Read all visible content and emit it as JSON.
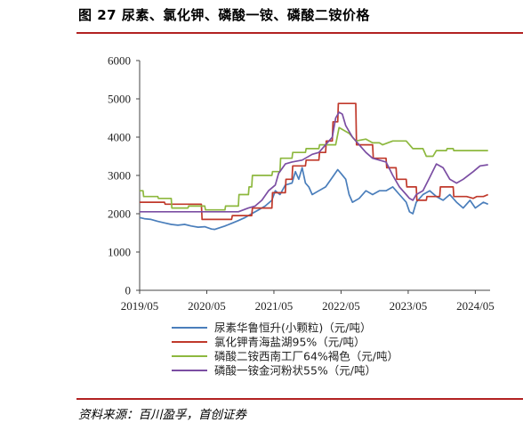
{
  "figure": {
    "title": "图 27 尿素、氯化钾、磷酸一铵、磷酸二铵价格",
    "source": "资料来源：百川盈孚，首创证券"
  },
  "chart_data": {
    "type": "line",
    "ylim": [
      0,
      6000
    ],
    "yticks": [
      0,
      1000,
      2000,
      3000,
      4000,
      5000,
      6000
    ],
    "xlim": [
      2019.33,
      2024.55
    ],
    "xticks": [
      {
        "value": 2019.33,
        "label": "2019/05"
      },
      {
        "value": 2020.33,
        "label": "2020/05"
      },
      {
        "value": 2021.33,
        "label": "2021/05"
      },
      {
        "value": 2022.33,
        "label": "2022/05"
      },
      {
        "value": 2023.33,
        "label": "2023/05"
      },
      {
        "value": 2024.33,
        "label": "2024/05"
      }
    ],
    "grid": false,
    "legend_position": "bottom",
    "series": [
      {
        "name": "尿素华鲁恒升(小颗粒)（元/吨）",
        "color": "#4a7ebb",
        "points": [
          [
            2019.33,
            1900
          ],
          [
            2019.4,
            1870
          ],
          [
            2019.5,
            1850
          ],
          [
            2019.6,
            1800
          ],
          [
            2019.7,
            1760
          ],
          [
            2019.8,
            1720
          ],
          [
            2019.9,
            1700
          ],
          [
            2020.0,
            1720
          ],
          [
            2020.1,
            1680
          ],
          [
            2020.2,
            1650
          ],
          [
            2020.3,
            1660
          ],
          [
            2020.4,
            1600
          ],
          [
            2020.45,
            1590
          ],
          [
            2020.5,
            1620
          ],
          [
            2020.6,
            1680
          ],
          [
            2020.7,
            1750
          ],
          [
            2020.8,
            1820
          ],
          [
            2020.9,
            1900
          ],
          [
            2021.0,
            2000
          ],
          [
            2021.1,
            2100
          ],
          [
            2021.2,
            2200
          ],
          [
            2021.3,
            2350
          ],
          [
            2021.35,
            2600
          ],
          [
            2021.42,
            2500
          ],
          [
            2021.5,
            2750
          ],
          [
            2021.6,
            2800
          ],
          [
            2021.65,
            3100
          ],
          [
            2021.7,
            2900
          ],
          [
            2021.75,
            3200
          ],
          [
            2021.8,
            2800
          ],
          [
            2021.85,
            2700
          ],
          [
            2021.9,
            2500
          ],
          [
            2022.0,
            2600
          ],
          [
            2022.1,
            2700
          ],
          [
            2022.2,
            2950
          ],
          [
            2022.28,
            3150
          ],
          [
            2022.33,
            3050
          ],
          [
            2022.4,
            2900
          ],
          [
            2022.45,
            2500
          ],
          [
            2022.5,
            2300
          ],
          [
            2022.6,
            2400
          ],
          [
            2022.7,
            2600
          ],
          [
            2022.8,
            2500
          ],
          [
            2022.9,
            2600
          ],
          [
            2023.0,
            2600
          ],
          [
            2023.1,
            2700
          ],
          [
            2023.2,
            2500
          ],
          [
            2023.3,
            2300
          ],
          [
            2023.35,
            2050
          ],
          [
            2023.4,
            2000
          ],
          [
            2023.45,
            2300
          ],
          [
            2023.55,
            2500
          ],
          [
            2023.65,
            2600
          ],
          [
            2023.75,
            2450
          ],
          [
            2023.85,
            2350
          ],
          [
            2023.95,
            2500
          ],
          [
            2024.05,
            2300
          ],
          [
            2024.15,
            2150
          ],
          [
            2024.25,
            2350
          ],
          [
            2024.33,
            2150
          ],
          [
            2024.45,
            2300
          ],
          [
            2024.52,
            2250
          ]
        ]
      },
      {
        "name": "氯化钾青海盐湖95%（元/吨）",
        "color": "#c0392b",
        "points": [
          [
            2019.33,
            2300
          ],
          [
            2019.7,
            2300
          ],
          [
            2019.71,
            2250
          ],
          [
            2020.25,
            2250
          ],
          [
            2020.26,
            1850
          ],
          [
            2020.7,
            1850
          ],
          [
            2020.71,
            1950
          ],
          [
            2021.0,
            1950
          ],
          [
            2021.01,
            2150
          ],
          [
            2021.3,
            2150
          ],
          [
            2021.31,
            2550
          ],
          [
            2021.5,
            2550
          ],
          [
            2021.51,
            2900
          ],
          [
            2021.6,
            2900
          ],
          [
            2021.61,
            3250
          ],
          [
            2021.8,
            3250
          ],
          [
            2021.81,
            3400
          ],
          [
            2022.0,
            3400
          ],
          [
            2022.01,
            3600
          ],
          [
            2022.1,
            3600
          ],
          [
            2022.11,
            3900
          ],
          [
            2022.2,
            3900
          ],
          [
            2022.21,
            4400
          ],
          [
            2022.28,
            4400
          ],
          [
            2022.29,
            4880
          ],
          [
            2022.55,
            4880
          ],
          [
            2022.56,
            3800
          ],
          [
            2022.8,
            3800
          ],
          [
            2022.81,
            3450
          ],
          [
            2023.0,
            3450
          ],
          [
            2023.01,
            3200
          ],
          [
            2023.15,
            3200
          ],
          [
            2023.16,
            2900
          ],
          [
            2023.3,
            2900
          ],
          [
            2023.31,
            2700
          ],
          [
            2023.45,
            2700
          ],
          [
            2023.46,
            2350
          ],
          [
            2023.6,
            2350
          ],
          [
            2023.61,
            2450
          ],
          [
            2023.8,
            2450
          ],
          [
            2023.81,
            2700
          ],
          [
            2024.0,
            2700
          ],
          [
            2024.01,
            2450
          ],
          [
            2024.2,
            2450
          ],
          [
            2024.3,
            2400
          ],
          [
            2024.35,
            2450
          ],
          [
            2024.45,
            2450
          ],
          [
            2024.52,
            2500
          ]
        ]
      },
      {
        "name": "磷酸二铵西南工厂64%褐色（元/吨）",
        "color": "#8db83e",
        "points": [
          [
            2019.33,
            2600
          ],
          [
            2019.38,
            2600
          ],
          [
            2019.39,
            2450
          ],
          [
            2019.6,
            2450
          ],
          [
            2019.61,
            2400
          ],
          [
            2019.8,
            2400
          ],
          [
            2019.81,
            2150
          ],
          [
            2020.05,
            2150
          ],
          [
            2020.06,
            2200
          ],
          [
            2020.3,
            2200
          ],
          [
            2020.31,
            2100
          ],
          [
            2020.6,
            2100
          ],
          [
            2020.61,
            2200
          ],
          [
            2020.8,
            2200
          ],
          [
            2020.81,
            2500
          ],
          [
            2020.95,
            2500
          ],
          [
            2020.96,
            2700
          ],
          [
            2021.0,
            2700
          ],
          [
            2021.01,
            3000
          ],
          [
            2021.3,
            3000
          ],
          [
            2021.31,
            3100
          ],
          [
            2021.42,
            3100
          ],
          [
            2021.43,
            3450
          ],
          [
            2021.6,
            3450
          ],
          [
            2021.61,
            3600
          ],
          [
            2021.8,
            3600
          ],
          [
            2021.81,
            3700
          ],
          [
            2022.0,
            3700
          ],
          [
            2022.01,
            3800
          ],
          [
            2022.25,
            3800
          ],
          [
            2022.3,
            4250
          ],
          [
            2022.45,
            4100
          ],
          [
            2022.55,
            3900
          ],
          [
            2022.7,
            3950
          ],
          [
            2022.8,
            3850
          ],
          [
            2022.9,
            3850
          ],
          [
            2022.95,
            3800
          ],
          [
            2023.1,
            3900
          ],
          [
            2023.3,
            3900
          ],
          [
            2023.4,
            3700
          ],
          [
            2023.55,
            3700
          ],
          [
            2023.6,
            3500
          ],
          [
            2023.7,
            3500
          ],
          [
            2023.75,
            3650
          ],
          [
            2023.9,
            3650
          ],
          [
            2023.91,
            3700
          ],
          [
            2024.0,
            3700
          ],
          [
            2024.01,
            3650
          ],
          [
            2024.33,
            3650
          ],
          [
            2024.52,
            3650
          ]
        ]
      },
      {
        "name": "磷酸一铵金河粉状55%（元/吨）",
        "color": "#7b4ea3",
        "points": [
          [
            2019.33,
            2050
          ],
          [
            2019.6,
            2050
          ],
          [
            2019.8,
            2050
          ],
          [
            2020.0,
            2050
          ],
          [
            2020.2,
            2050
          ],
          [
            2020.4,
            2050
          ],
          [
            2020.6,
            2050
          ],
          [
            2020.8,
            2050
          ],
          [
            2020.95,
            2150
          ],
          [
            2021.05,
            2200
          ],
          [
            2021.15,
            2350
          ],
          [
            2021.25,
            2600
          ],
          [
            2021.35,
            2750
          ],
          [
            2021.4,
            3050
          ],
          [
            2021.5,
            3300
          ],
          [
            2021.6,
            3350
          ],
          [
            2021.75,
            3400
          ],
          [
            2021.9,
            3550
          ],
          [
            2022.0,
            3600
          ],
          [
            2022.1,
            3800
          ],
          [
            2022.2,
            4000
          ],
          [
            2022.25,
            4500
          ],
          [
            2022.3,
            4650
          ],
          [
            2022.35,
            4600
          ],
          [
            2022.4,
            4300
          ],
          [
            2022.5,
            4000
          ],
          [
            2022.6,
            3800
          ],
          [
            2022.7,
            3600
          ],
          [
            2022.8,
            3450
          ],
          [
            2022.9,
            3400
          ],
          [
            2023.0,
            3350
          ],
          [
            2023.1,
            3000
          ],
          [
            2023.2,
            2700
          ],
          [
            2023.3,
            2500
          ],
          [
            2023.35,
            2400
          ],
          [
            2023.4,
            2350
          ],
          [
            2023.45,
            2500
          ],
          [
            2023.55,
            2600
          ],
          [
            2023.65,
            2950
          ],
          [
            2023.75,
            3300
          ],
          [
            2023.85,
            3200
          ],
          [
            2023.95,
            2900
          ],
          [
            2024.05,
            2800
          ],
          [
            2024.15,
            2900
          ],
          [
            2024.3,
            3100
          ],
          [
            2024.4,
            3250
          ],
          [
            2024.52,
            3280
          ]
        ]
      }
    ]
  }
}
